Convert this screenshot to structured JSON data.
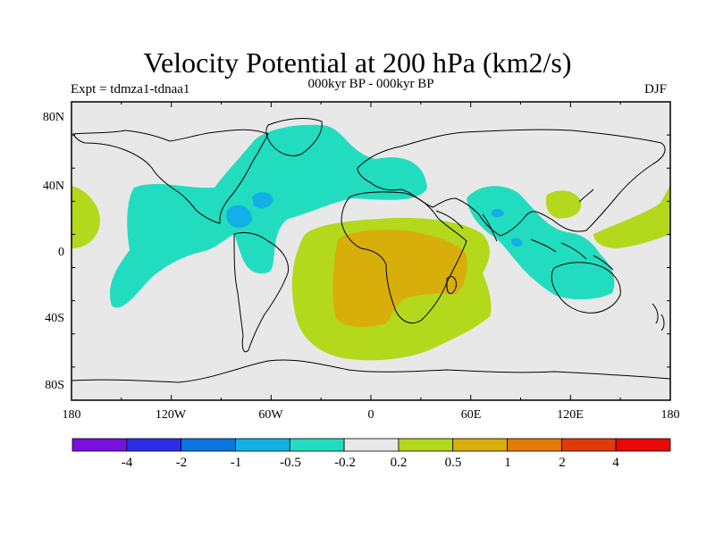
{
  "figure": {
    "title": "Velocity Potential at 200 hPa (km2/s)",
    "subtitle": "000kyr BP - 000kyr BP",
    "experiment_label": "Expt = tdmza1-tdnaa1",
    "season": "DJF"
  },
  "axes": {
    "y_ticks": [
      "80N",
      "40N",
      "0",
      "40S",
      "80S"
    ],
    "x_ticks": [
      "180",
      "120W",
      "60W",
      "0",
      "60E",
      "120E",
      "180"
    ]
  },
  "colorbar": {
    "colors": [
      "#7a10e0",
      "#2e2ee8",
      "#0a76e0",
      "#12b0e6",
      "#22dcc0",
      "#e8e8e8",
      "#b4d81c",
      "#d8ae0a",
      "#e47a08",
      "#e03a08",
      "#e80808"
    ],
    "labels": [
      "-4",
      "-2",
      "-1",
      "-0.5",
      "-0.2",
      "0.2",
      "0.5",
      "1",
      "2",
      "4"
    ]
  },
  "map_colors": {
    "neutral": "#e8e8e8",
    "cyan": "#22dcc0",
    "light_blue": "#12b0e6",
    "yellow_green": "#b4d81c",
    "orange": "#d8ae0a"
  }
}
